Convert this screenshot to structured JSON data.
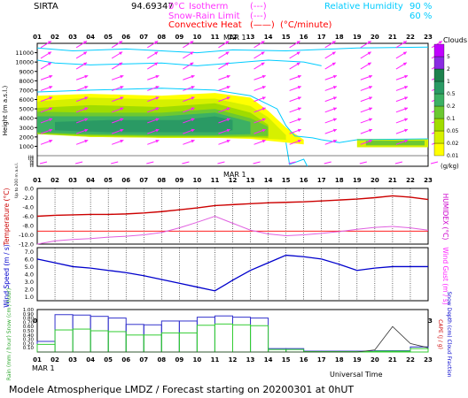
{
  "header": {
    "site": "SIRTA",
    "coords": "94.69347",
    "legend": [
      {
        "label": "Isotherm",
        "value": "0°C",
        "sample": "(---)",
        "color": "#ff33ff"
      },
      {
        "label": "Snow-Rain Limit",
        "sample": "(---)",
        "color": "#ff33ff"
      },
      {
        "label": "Convective Heat",
        "sample": "(——)",
        "unit": "(°C/minute)",
        "color": "#ff0000"
      }
    ],
    "rh": {
      "label": "Relative Humidity",
      "values": [
        "90 %",
        "60 %"
      ],
      "color": "#00ccff"
    }
  },
  "hours": [
    "01",
    "02",
    "03",
    "04",
    "05",
    "06",
    "07",
    "08",
    "09",
    "10",
    "11",
    "12",
    "13",
    "14",
    "15",
    "16",
    "17",
    "18",
    "19",
    "20",
    "21",
    "22",
    "23"
  ],
  "date_label": "MAR   1",
  "footer": {
    "universal_time": "Universal Time",
    "title": "Modele Atmospherique LMDZ / Forecast starting on 20200301 at 0hUT"
  },
  "panels": {
    "clouds": {
      "ylabel": "Height  (m a.s.l.)",
      "yticks": [
        "1000",
        "2000",
        "3000",
        "4000",
        "5000",
        "6000",
        "7000",
        "8000",
        "9000",
        "10000",
        "11000"
      ],
      "colorbar_title": "Clouds",
      "colorbar_unit": "(g/kg)",
      "colorbar_ticks": [
        "0.01",
        "0.02",
        "0.05",
        "0.1",
        "0.2",
        "0.5",
        "1",
        "2",
        "5"
      ],
      "colorbar_colors": [
        "#ffff00",
        "#d6f000",
        "#a0dc00",
        "#6cc832",
        "#3cb064",
        "#2a9a64",
        "#1e824e",
        "#8a2be2",
        "#c000ff"
      ],
      "low_ylabel": "Up to 200 m a.s.l.",
      "low_yticks": [
        "10",
        "20",
        "30",
        "40",
        "50",
        "60",
        "70",
        "80",
        "90",
        "100",
        "110",
        "120",
        "130",
        "140",
        "150"
      ]
    },
    "temperature": {
      "ylabel_left": "Temperature (°C)",
      "ylabel_right": "HUMIDEX (°C)",
      "yticks": [
        "-12.0",
        "-10.0",
        "-8.0",
        "-6.0",
        "-4.0",
        "-2.0",
        "0.0"
      ],
      "ylim": [
        -12,
        0
      ]
    },
    "wind": {
      "ylabel_left": "Wind Speed (m / s)",
      "ylabel_right": "Wind Gust (m / s)",
      "yticks": [
        "1.0",
        "2.0",
        "3.0",
        "4.0",
        "5.0",
        "6.0",
        "7.0"
      ],
      "ylim": [
        0.5,
        7.5
      ]
    },
    "precip": {
      "ylabel_left": "Rain (mm / hour) Snow (cm / hour)",
      "ylabel_right_a": "CAPE (J / g)",
      "ylabel_right_b": "Snow Depth (cm) Cloud Fraction",
      "yticks": [
        "0.10",
        "0.20",
        "0.30",
        "0.40",
        "0.50",
        "0.60",
        "0.70",
        "0.80",
        "0.90",
        "1.00"
      ],
      "ylim": [
        0,
        1.0
      ]
    }
  },
  "chart_data": [
    {
      "type": "heatmap",
      "title": "Clouds",
      "ylabel": "Height (m a.s.l.)",
      "unit": "g/kg",
      "x_hours": [
        1,
        23
      ],
      "ylim": [
        0,
        12000
      ],
      "layers": [
        {
          "level": 0.01,
          "band": [
            [
              1,
              2400,
              6400
            ],
            [
              4,
              2000,
              6600
            ],
            [
              8,
              1900,
              6400
            ],
            [
              11,
              1900,
              6700
            ],
            [
              13,
              1800,
              6200
            ],
            [
              14,
              1600,
              4800
            ],
            [
              15,
              1400,
              3000
            ],
            [
              16,
              1200,
              1700
            ]
          ]
        },
        {
          "level": 0.02,
          "band": [
            [
              1,
              2300,
              5800
            ],
            [
              4,
              2000,
              6200
            ],
            [
              8,
              1900,
              6000
            ],
            [
              11,
              1900,
              6100
            ],
            [
              13,
              1900,
              5300
            ],
            [
              14,
              1800,
              4100
            ],
            [
              15,
              1700,
              2200
            ]
          ]
        },
        {
          "level": 0.05,
          "band": [
            [
              1,
              2300,
              5100
            ],
            [
              4,
              2100,
              5400
            ],
            [
              8,
              2000,
              5200
            ],
            [
              11,
              2000,
              5600
            ],
            [
              13,
              2000,
              4600
            ],
            [
              14,
              1900,
              3300
            ]
          ]
        },
        {
          "level": 0.1,
          "band": [
            [
              1,
              2400,
              4700
            ],
            [
              4,
              2200,
              4600
            ],
            [
              8,
              2100,
              4600
            ],
            [
              11,
              2100,
              5000
            ],
            [
              13,
              2100,
              4000
            ],
            [
              14,
              2100,
              3100
            ]
          ]
        },
        {
          "level": 0.2,
          "band": [
            [
              1,
              2500,
              4200
            ],
            [
              4,
              2300,
              4200
            ],
            [
              8,
              2200,
              4200
            ],
            [
              11,
              2200,
              4600
            ],
            [
              13,
              2300,
              3600
            ]
          ]
        },
        {
          "level": 0.5,
          "band": [
            [
              2,
              2700,
              3600
            ],
            [
              5,
              2500,
              3800
            ],
            [
              9,
              2500,
              3800
            ],
            [
              11,
              2500,
              4200
            ],
            [
              12,
              2700,
              3800
            ]
          ]
        }
      ]
    },
    {
      "type": "line",
      "title": "Temperature / HUMIDEX",
      "x": [
        1,
        2,
        3,
        4,
        5,
        6,
        7,
        8,
        9,
        10,
        11,
        12,
        13,
        14,
        15,
        16,
        17,
        18,
        19,
        20,
        21,
        22,
        23
      ],
      "ylim": [
        -12,
        0
      ],
      "series": [
        {
          "values": [
            -6.0,
            -5.8,
            -5.7,
            -5.6,
            -5.6,
            -5.5,
            -5.3,
            -5.0,
            -4.6,
            -4.2,
            -3.7,
            -3.5,
            -3.3,
            -3.1,
            -3.0,
            -2.9,
            -2.7,
            -2.5,
            -2.3,
            -2.0,
            -1.6,
            -1.9,
            -2.4
          ],
          "color": "#cc0000"
        },
        {
          "values": [
            -12.0,
            -11.3,
            -11.0,
            -10.8,
            -10.5,
            -10.3,
            -10.0,
            -9.5,
            -8.5,
            -7.3,
            -6.0,
            -7.5,
            -9.0,
            -9.8,
            -10.2,
            -10.0,
            -9.7,
            -9.3,
            -8.8,
            -8.4,
            -8.2,
            -8.5,
            -9.0
          ],
          "color": "#e060e0"
        }
      ]
    },
    {
      "type": "line",
      "title": "Wind Speed",
      "x": [
        1,
        2,
        3,
        4,
        5,
        6,
        7,
        8,
        9,
        10,
        11,
        12,
        13,
        14,
        15,
        16,
        17,
        18,
        19,
        20,
        21,
        22,
        23
      ],
      "ylim": [
        0.5,
        7.5
      ],
      "series": [
        {
          "values": [
            6.0,
            5.5,
            5.0,
            4.8,
            4.5,
            4.2,
            3.8,
            3.3,
            2.8,
            2.3,
            1.8,
            3.2,
            4.5,
            5.5,
            6.5,
            6.3,
            6.0,
            5.3,
            4.5,
            4.8,
            5.0,
            5.0,
            5.0
          ],
          "color": "#0000cc"
        }
      ]
    },
    {
      "type": "bar",
      "title": "Rain / Snow / CAPE / Snow Depth / Cloud Fraction",
      "x": [
        1,
        2,
        3,
        4,
        5,
        6,
        7,
        8,
        9,
        10,
        11,
        12,
        13,
        14,
        15,
        16,
        17,
        18,
        19,
        20,
        21,
        22,
        23
      ],
      "ylim": [
        0,
        1.0
      ],
      "series": [
        {
          "values": [
            0.25,
            0.88,
            0.87,
            0.84,
            0.8,
            0.65,
            0.64,
            0.73,
            0.73,
            0.82,
            0.85,
            0.82,
            0.8,
            0.08,
            0.08,
            0.02,
            0.02,
            0.02,
            0.02,
            0.03,
            0.03,
            0.12,
            0.12
          ],
          "color": "#3333cc"
        },
        {
          "values": [
            0.18,
            0.52,
            0.54,
            0.5,
            0.48,
            0.4,
            0.4,
            0.45,
            0.45,
            0.63,
            0.66,
            0.64,
            0.62,
            0.06,
            0.06,
            0.01,
            0.01,
            0.01,
            0.01,
            0.02,
            0.02,
            0.08,
            0.08
          ],
          "color": "#33cc33"
        },
        {
          "values": [
            0,
            0,
            0,
            0,
            0,
            0,
            0,
            0,
            0,
            0,
            0,
            0,
            0,
            0,
            0,
            0,
            0,
            0,
            0,
            0.05,
            0.6,
            0.2,
            0.1
          ],
          "color": "#333333"
        }
      ]
    }
  ]
}
